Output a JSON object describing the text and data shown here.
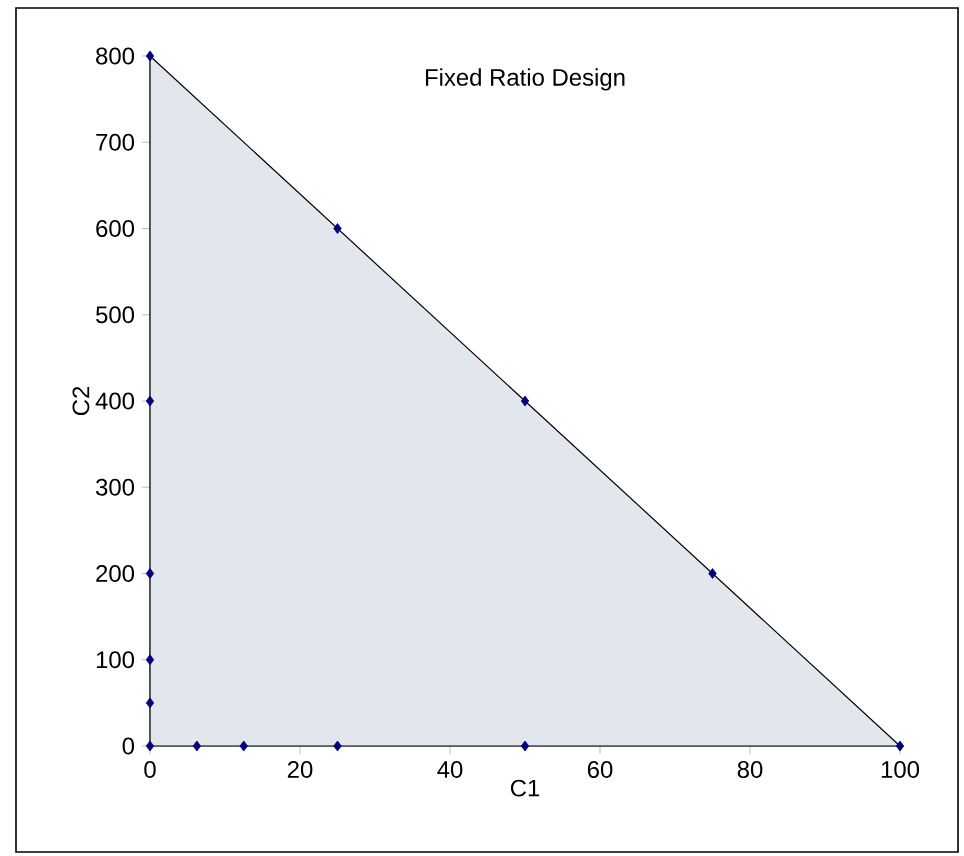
{
  "chart_data": {
    "type": "scatter",
    "title": "Fixed Ratio Design",
    "xlabel": "C1",
    "ylabel": "C2",
    "xlim": [
      0,
      100
    ],
    "ylim": [
      0,
      800
    ],
    "xticks": [
      0,
      20,
      40,
      60,
      80,
      100
    ],
    "yticks": [
      0,
      100,
      200,
      300,
      400,
      500,
      600,
      700,
      800
    ],
    "grid": false,
    "series": [
      {
        "type": "area",
        "color": "#e2e7ee",
        "marker": "none",
        "x": [
          0,
          100
        ],
        "values": [
          800,
          0
        ]
      },
      {
        "color": "#000080",
        "marker": "diamond",
        "x": [
          0,
          25,
          50,
          75,
          100,
          0,
          0,
          0,
          0,
          0,
          6.25,
          12.5,
          25,
          50
        ],
        "values": [
          800,
          600,
          400,
          200,
          0,
          400,
          200,
          100,
          50,
          0,
          0,
          0,
          0,
          0
        ]
      }
    ]
  }
}
